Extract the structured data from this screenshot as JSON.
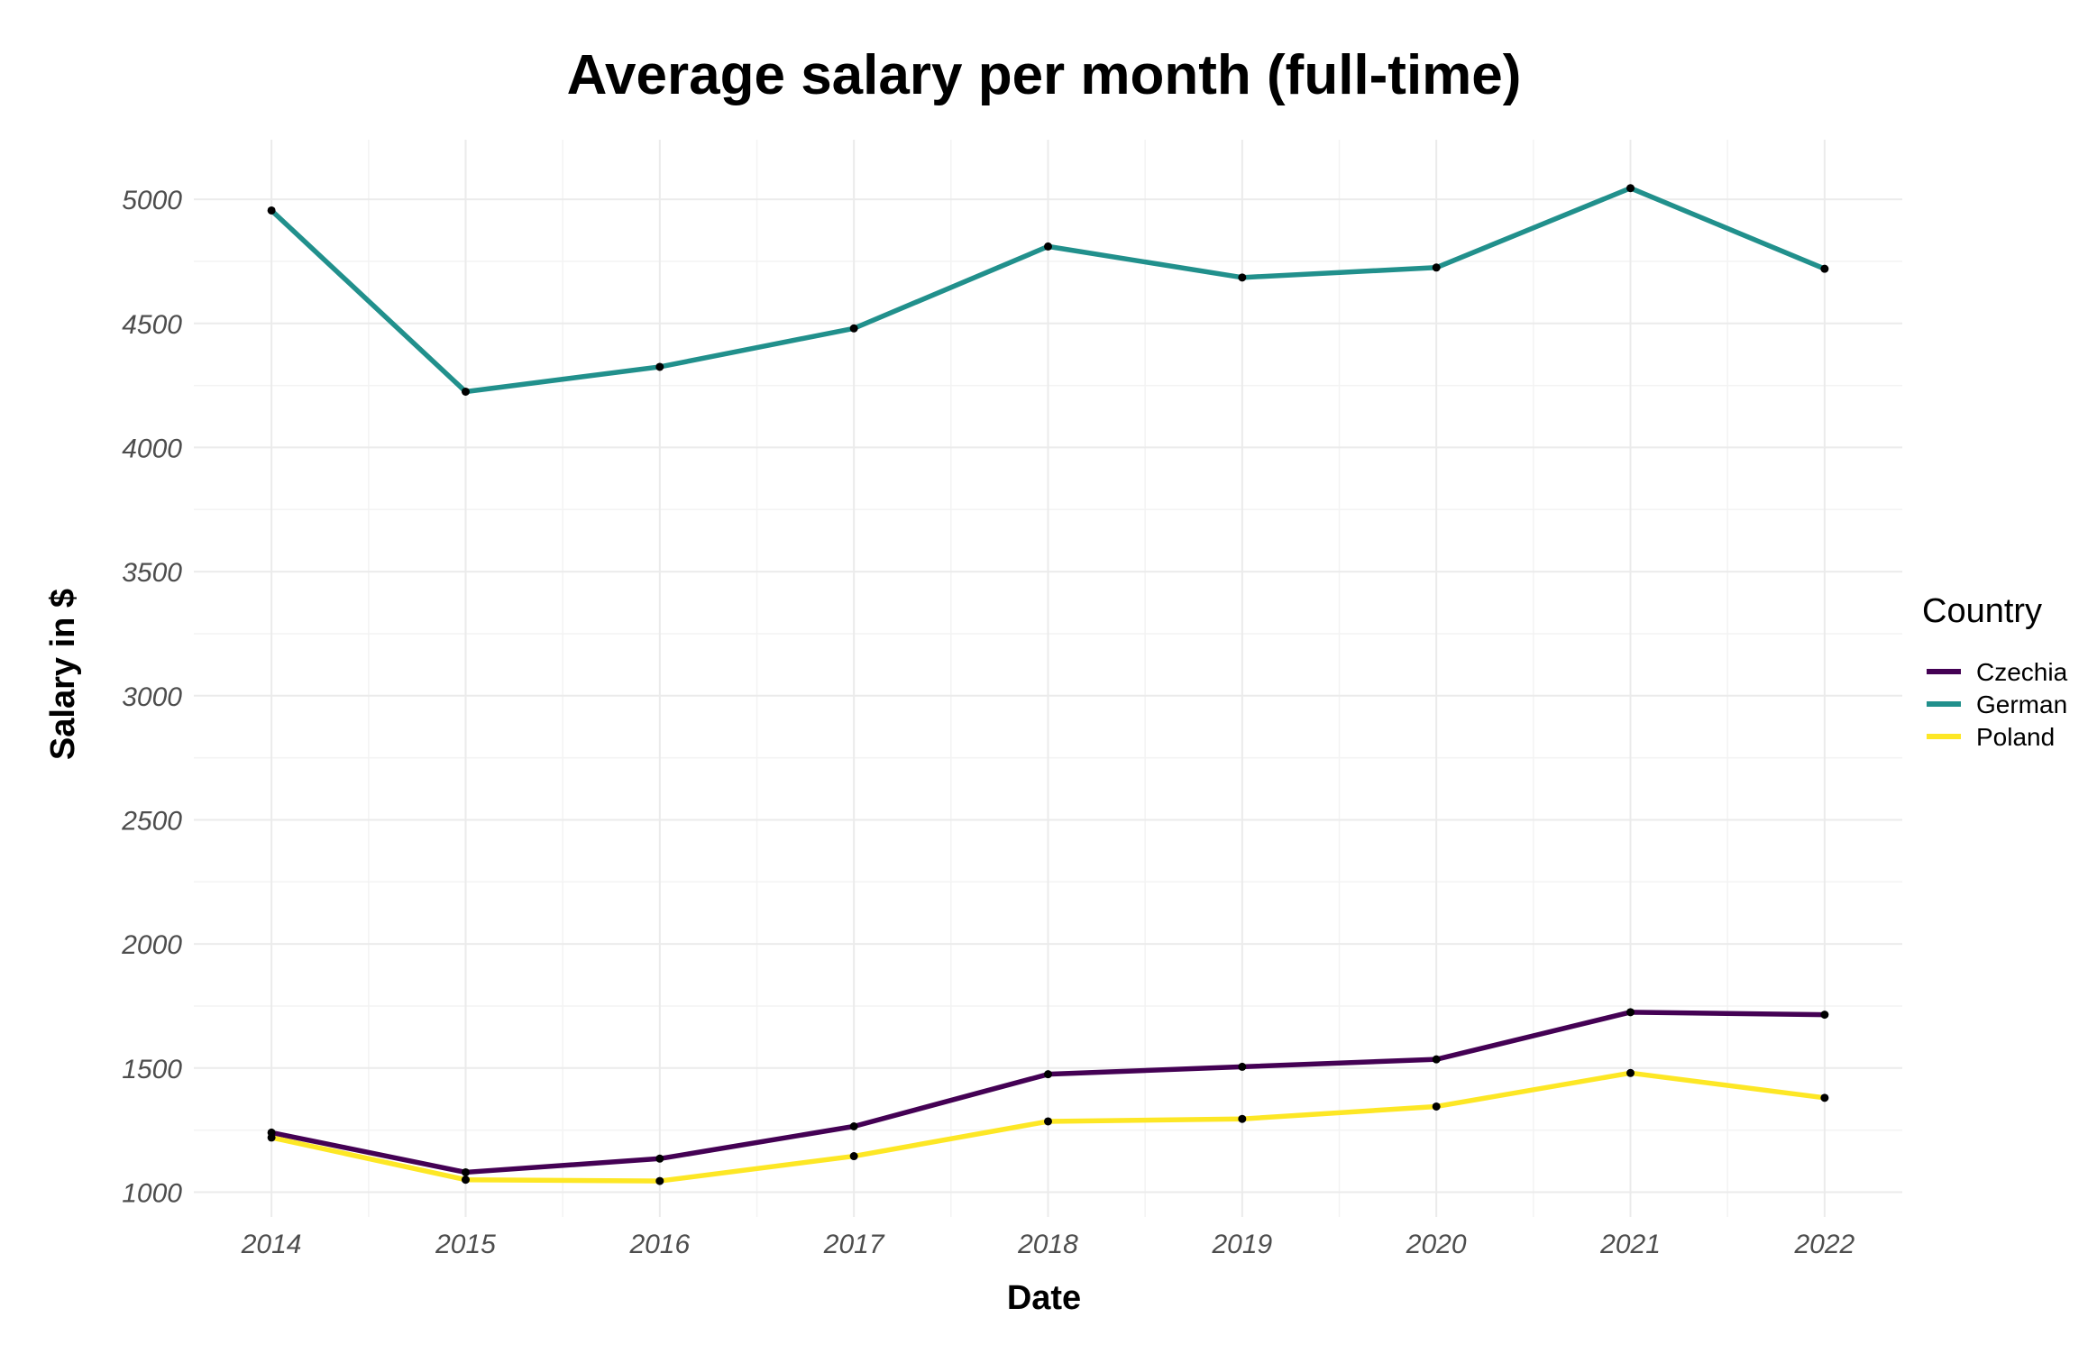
{
  "chart_data": {
    "type": "line",
    "title": "Average salary per month (full-time)",
    "xlabel": "Date",
    "ylabel": "Salary in $",
    "x": [
      2014,
      2015,
      2016,
      2017,
      2018,
      2019,
      2020,
      2021,
      2022
    ],
    "x_tick_labels": [
      "2014",
      "2015",
      "2016",
      "2017",
      "2018",
      "2019",
      "2020",
      "2021",
      "2022"
    ],
    "y_ticks": [
      1000,
      1500,
      2000,
      2500,
      3000,
      3500,
      4000,
      4500,
      5000
    ],
    "y_tick_labels": [
      "1000",
      "1500",
      "2000",
      "2500",
      "3000",
      "3500",
      "4000",
      "4500",
      "5000"
    ],
    "xlim": [
      2013.6,
      2022.4
    ],
    "ylim": [
      900,
      5240
    ],
    "grid": true,
    "legend_title": "Country",
    "legend_position": "right",
    "series": [
      {
        "name": "Czechia",
        "color": "#440154",
        "values": [
          1240,
          1080,
          1135,
          1265,
          1475,
          1505,
          1535,
          1725,
          1715
        ]
      },
      {
        "name": "German",
        "color": "#21908c",
        "values": [
          4955,
          4225,
          4325,
          4480,
          4810,
          4685,
          4725,
          5045,
          4720
        ]
      },
      {
        "name": "Poland",
        "color": "#fde725",
        "values": [
          1220,
          1050,
          1045,
          1145,
          1285,
          1295,
          1345,
          1480,
          1380
        ]
      }
    ]
  }
}
